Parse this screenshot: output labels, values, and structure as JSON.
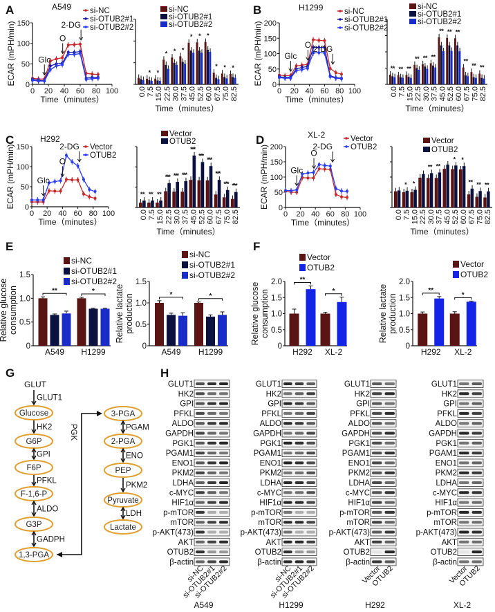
{
  "panels": {
    "A": "A",
    "B": "B",
    "C": "C",
    "D": "D",
    "E": "E",
    "F": "F",
    "G": "G",
    "H": "H"
  },
  "colors": {
    "ctrl_line": "#c62828",
    "kd1_line": "#1a1aa0",
    "kd2_line": "#2a3cf0",
    "ctrl_bar": "#5a1414",
    "kd1_bar": "#0c1240",
    "kd2_bar": "#1a2cc8",
    "otub2_bar_dark": "#0c1240",
    "otub2_bar_blue": "#1424e6",
    "ellipse": "#e0a030"
  },
  "chart_data": [
    {
      "id": "A_line",
      "type": "line",
      "title": "A549",
      "xlabel": "Time（minutes）",
      "ylabel": "ECAR (mPH/min)",
      "xlim": [
        0,
        100
      ],
      "ylim": [
        0,
        150
      ],
      "xticks": [
        0,
        20,
        40,
        60,
        80,
        100
      ],
      "yticks": [
        0,
        50,
        100,
        150
      ],
      "x": [
        0,
        7.5,
        15,
        22.5,
        30,
        37.5,
        45,
        52.5,
        60,
        67.5,
        75,
        82.5
      ],
      "series": [
        {
          "name": "si-NC",
          "values": [
            15,
            13,
            13,
            57,
            62,
            65,
            96,
            97,
            98,
            27,
            25,
            24
          ]
        },
        {
          "name": "si-OTUB2#1",
          "values": [
            12,
            10,
            9,
            45,
            50,
            52,
            78,
            78,
            80,
            15,
            17,
            17
          ]
        },
        {
          "name": "si-OTUB2#2",
          "values": [
            10,
            8,
            8,
            36,
            45,
            48,
            73,
            73,
            75,
            12,
            14,
            15
          ]
        }
      ],
      "annotations": [
        {
          "label": "Glc",
          "x": 15
        },
        {
          "label": "O",
          "x": 38
        },
        {
          "label": "2-DG",
          "x": 61
        }
      ]
    },
    {
      "id": "A_bar",
      "type": "bar",
      "xlabel": "Time（minutes）",
      "ylim": [
        0,
        150
      ],
      "yticks": [
        0,
        50,
        100,
        150
      ],
      "categories": [
        "0.0",
        "7.5",
        "15.0",
        "22.5",
        "30.0",
        "37.5",
        "45.0",
        "52.5",
        "60.0",
        "67.5",
        "75.0",
        "82.5"
      ],
      "series": [
        {
          "name": "si-NC",
          "values": [
            15,
            13,
            13,
            57,
            62,
            65,
            96,
            97,
            98,
            27,
            25,
            24
          ]
        },
        {
          "name": "si-OTUB2#1",
          "values": [
            12,
            10,
            9,
            45,
            50,
            52,
            78,
            78,
            80,
            15,
            17,
            17
          ]
        },
        {
          "name": "si-OTUB2#2",
          "values": [
            10,
            8,
            8,
            36,
            45,
            48,
            73,
            73,
            75,
            12,
            14,
            15
          ]
        }
      ],
      "significance": [
        "",
        "*",
        "*",
        "*",
        "*",
        "*",
        "*",
        "*",
        "*",
        "*",
        "*",
        "*"
      ]
    },
    {
      "id": "B_line",
      "type": "line",
      "title": "H1299",
      "xlabel": "Time（minutes）",
      "ylabel": "ECAR (mPH/min)",
      "xlim": [
        0,
        100
      ],
      "ylim": [
        0,
        200
      ],
      "xticks": [
        0,
        20,
        40,
        60,
        80,
        100
      ],
      "yticks": [
        0,
        50,
        100,
        150,
        200
      ],
      "x": [
        0,
        7.5,
        15,
        22.5,
        30,
        37.5,
        45,
        52.5,
        60,
        67.5,
        75,
        82.5
      ],
      "series": [
        {
          "name": "si-NC",
          "values": [
            30,
            28,
            29,
            60,
            62,
            65,
            145,
            143,
            142,
            52,
            38,
            33
          ]
        },
        {
          "name": "si-OTUB2#1",
          "values": [
            25,
            22,
            23,
            50,
            55,
            58,
            120,
            120,
            120,
            28,
            22,
            20
          ]
        },
        {
          "name": "si-OTUB2#2",
          "values": [
            22,
            20,
            20,
            45,
            48,
            52,
            102,
            103,
            102,
            25,
            20,
            18
          ]
        }
      ],
      "annotations": [
        {
          "label": "Glc",
          "x": 15
        },
        {
          "label": "O",
          "x": 38
        },
        {
          "label": "2-DG",
          "x": 71
        }
      ]
    },
    {
      "id": "B_bar",
      "type": "bar",
      "xlabel": "Time（minutes）",
      "ylim": [
        0,
        200
      ],
      "yticks": [
        0,
        50,
        100,
        150,
        200
      ],
      "categories": [
        "0.0",
        "7.5",
        "15.0",
        "22.5",
        "30.0",
        "37.5",
        "45.0",
        "52.5",
        "60.0",
        "67.5",
        "75.0",
        "82.5"
      ],
      "series": [
        {
          "name": "si-NC",
          "values": [
            30,
            28,
            29,
            60,
            62,
            65,
            145,
            143,
            142,
            52,
            38,
            33
          ]
        },
        {
          "name": "si-OTUB2#1",
          "values": [
            25,
            22,
            23,
            50,
            55,
            58,
            120,
            120,
            120,
            28,
            22,
            20
          ]
        },
        {
          "name": "si-OTUB2#2",
          "values": [
            22,
            20,
            20,
            45,
            48,
            52,
            102,
            103,
            102,
            25,
            20,
            18
          ]
        }
      ],
      "significance": [
        "**",
        "**",
        "**",
        "**",
        "**",
        "**",
        "**",
        "**",
        "**",
        "**",
        "**",
        "**"
      ]
    },
    {
      "id": "C_line",
      "type": "line",
      "title": "H292",
      "xlabel": "Time（minutes）",
      "ylabel": "ECAR (mPH/min)",
      "xlim": [
        0,
        100
      ],
      "ylim": [
        0,
        150
      ],
      "xticks": [
        0,
        20,
        40,
        60,
        80,
        100
      ],
      "yticks": [
        0,
        50,
        100,
        150
      ],
      "x": [
        0,
        7.5,
        15,
        22.5,
        30,
        37.5,
        45,
        52.5,
        60,
        67.5,
        75,
        82.5
      ],
      "series": [
        {
          "name": "Vector",
          "values": [
            12,
            12,
            12,
            40,
            39,
            39,
            68,
            67,
            67,
            32,
            25,
            21
          ]
        },
        {
          "name": "OTUB2",
          "values": [
            17,
            17,
            17,
            60,
            63,
            65,
            128,
            112,
            102,
            68,
            43,
            38
          ]
        }
      ],
      "annotations": [
        {
          "label": "Glc",
          "x": 15
        },
        {
          "label": "O",
          "x": 40
        },
        {
          "label": "2-DG",
          "x": 62
        }
      ]
    },
    {
      "id": "C_bar",
      "type": "bar",
      "xlabel": "Time（minutes）",
      "ylim": [
        0,
        150
      ],
      "yticks": [
        0,
        50,
        100,
        150
      ],
      "categories": [
        "0.0",
        "7.5",
        "15.0",
        "22.5",
        "30.0",
        "37.5",
        "45.0",
        "52.5",
        "60.0",
        "67.5",
        "75.0",
        "82.5"
      ],
      "series": [
        {
          "name": "Vector",
          "values": [
            12,
            12,
            12,
            40,
            39,
            39,
            68,
            67,
            67,
            32,
            25,
            21
          ]
        },
        {
          "name": "OTUB2",
          "values": [
            17,
            17,
            17,
            60,
            63,
            65,
            128,
            112,
            102,
            68,
            43,
            38
          ]
        }
      ],
      "significance": [
        "**",
        "**",
        "**",
        "***",
        "***",
        "***",
        "***",
        "***",
        "***",
        "***",
        "***",
        "***"
      ]
    },
    {
      "id": "D_line",
      "type": "line",
      "title": "XL-2",
      "xlabel": "Time（minutes）",
      "ylabel": "ECAR (mPH/min)",
      "xlim": [
        0,
        100
      ],
      "ylim": [
        0,
        200
      ],
      "xticks": [
        0,
        20,
        40,
        60,
        80,
        100
      ],
      "yticks": [
        0,
        50,
        100,
        150,
        200
      ],
      "x": [
        0,
        7.5,
        15,
        22.5,
        30,
        37.5,
        45,
        52.5,
        60,
        67.5,
        75,
        82.5
      ],
      "series": [
        {
          "name": "Vector",
          "values": [
            53,
            50,
            50,
            98,
            97,
            97,
            127,
            126,
            125,
            43,
            35,
            33
          ]
        },
        {
          "name": "OTUB2",
          "values": [
            56,
            55,
            58,
            110,
            113,
            115,
            141,
            138,
            136,
            62,
            54,
            53
          ]
        }
      ],
      "annotations": [
        {
          "label": "Glc",
          "x": 15
        },
        {
          "label": "O",
          "x": 38
        },
        {
          "label": "2-DG",
          "x": 63
        }
      ]
    },
    {
      "id": "D_bar",
      "type": "bar",
      "xlabel": "Time（minutes）",
      "ylim": [
        0,
        200
      ],
      "yticks": [
        0,
        50,
        100,
        150,
        200
      ],
      "categories": [
        "0.0",
        "7.5",
        "15.0",
        "22.5",
        "30.0",
        "37.5",
        "45.0",
        "52.5",
        "60.0",
        "67.5",
        "75.0",
        "82.5"
      ],
      "series": [
        {
          "name": "Vector",
          "values": [
            53,
            50,
            50,
            98,
            97,
            97,
            127,
            126,
            125,
            43,
            35,
            33
          ]
        },
        {
          "name": "OTUB2",
          "values": [
            56,
            55,
            58,
            110,
            113,
            115,
            141,
            138,
            136,
            62,
            54,
            53
          ]
        }
      ],
      "significance": [
        "",
        "*",
        "*",
        "",
        "**",
        "**",
        "",
        "*",
        "*",
        "**",
        "**",
        "**"
      ]
    },
    {
      "id": "E_glucose",
      "type": "bar",
      "ylabel": [
        "Relative glucose",
        "consumption"
      ],
      "ylim": [
        0,
        1.5
      ],
      "yticks": [
        0,
        0.5,
        1.0,
        1.5
      ],
      "ytick_labels": [
        "0",
        "0.5",
        "1.0",
        "1.5"
      ],
      "categories": [
        "A549",
        "H1299"
      ],
      "series": [
        {
          "name": "si-NC",
          "values": [
            1.0,
            1.0
          ],
          "errors": [
            0.03,
            0.02
          ]
        },
        {
          "name": "si-OTUB2#1",
          "values": [
            0.65,
            0.78
          ],
          "errors": [
            0.02,
            0.01
          ]
        },
        {
          "name": "si-OTUB2#2",
          "values": [
            0.68,
            0.78
          ],
          "errors": [
            0.05,
            0.01
          ]
        }
      ],
      "significance": [
        "**",
        "*"
      ]
    },
    {
      "id": "E_lactate",
      "type": "bar",
      "ylabel": [
        "Relative lactate",
        "production"
      ],
      "ylim": [
        0,
        1.5
      ],
      "yticks": [
        0,
        0.5,
        1.0,
        1.5
      ],
      "ytick_labels": [
        "0",
        "0.5",
        "1.0",
        "1.5"
      ],
      "categories": [
        "A549",
        "H1299"
      ],
      "series": [
        {
          "name": "si-NC",
          "values": [
            1.0,
            1.0
          ],
          "errors": [
            0.05,
            0.02
          ]
        },
        {
          "name": "si-OTUB2#1",
          "values": [
            0.72,
            0.68
          ],
          "errors": [
            0.04,
            0.04
          ]
        },
        {
          "name": "si-OTUB2#2",
          "values": [
            0.7,
            0.72
          ],
          "errors": [
            0.07,
            0.07
          ]
        }
      ],
      "significance": [
        "*",
        "*"
      ]
    },
    {
      "id": "F_glucose",
      "type": "bar",
      "ylabel": [
        "Relative glucose",
        "consumption"
      ],
      "ylim": [
        0,
        2.0
      ],
      "yticks": [
        0,
        0.5,
        1.0,
        1.5,
        2.0
      ],
      "ytick_labels": [
        "0",
        "0.5",
        "1.0",
        "1.5",
        "2.0"
      ],
      "categories": [
        "H292",
        "XL-2"
      ],
      "series": [
        {
          "name": "Vector",
          "values": [
            1.0,
            1.0
          ],
          "errors": [
            0.14,
            0.04
          ]
        },
        {
          "name": "OTUB2",
          "values": [
            1.76,
            1.36
          ],
          "errors": [
            0.1,
            0.15
          ]
        }
      ],
      "significance": [
        "**",
        "*"
      ]
    },
    {
      "id": "F_lactate",
      "type": "bar",
      "ylabel": [
        "Relative lactate",
        "production"
      ],
      "ylim": [
        0,
        2.0
      ],
      "yticks": [
        0,
        0.5,
        1.0,
        1.5,
        2.0
      ],
      "ytick_labels": [
        "0",
        "0.5",
        "1.0",
        "1.5",
        "2.0"
      ],
      "categories": [
        "H292",
        "XL-2"
      ],
      "series": [
        {
          "name": "Vector",
          "values": [
            1.0,
            1.0
          ],
          "errors": [
            0.05,
            0.06
          ]
        },
        {
          "name": "OTUB2",
          "values": [
            1.47,
            1.37
          ],
          "errors": [
            0.06,
            0.02
          ]
        }
      ],
      "significance": [
        "**",
        "*"
      ]
    }
  ],
  "pathway": {
    "top": "GLUT",
    "left": [
      {
        "metabolite": "Glucose",
        "enzyme": "GLUT1",
        "reversible": false
      },
      {
        "metabolite": "G6P",
        "enzyme": "HK2",
        "reversible": false
      },
      {
        "metabolite": "F6P",
        "enzyme": "GPI",
        "reversible": true
      },
      {
        "metabolite": "F-1,6-P",
        "enzyme": "PFKL",
        "reversible": false
      },
      {
        "metabolite": "G3P",
        "enzyme": "ALDO",
        "reversible": true
      },
      {
        "metabolite": "1,3-PGA",
        "enzyme": "GADPH",
        "reversible": true
      }
    ],
    "right": [
      {
        "metabolite": "3-PGA",
        "enzyme": "",
        "reversible": false
      },
      {
        "metabolite": "2-PGA",
        "enzyme": "PGAM",
        "reversible": true
      },
      {
        "metabolite": "PEP",
        "enzyme": "ENO",
        "reversible": true
      },
      {
        "metabolite": "Pyruvate",
        "enzyme": "PKM2",
        "reversible": false
      },
      {
        "metabolite": "Lactate",
        "enzyme": "LDH",
        "reversible": true
      }
    ],
    "link_enzyme": "PGK"
  },
  "blots": {
    "proteins": [
      "GLUT1",
      "HK2",
      "GPI",
      "PFKL",
      "ALDO",
      "GAPDH",
      "PGK1",
      "PGAM1",
      "ENO1",
      "PKM2",
      "LDHA",
      "c-MYC",
      "HIF1α",
      "p-mTOR",
      "mTOR",
      "p-AKT(473)",
      "AKT",
      "OTUB2",
      "β-actin"
    ],
    "groups": [
      {
        "cell": "A549",
        "lanes": [
          "si-NC",
          "si-OTUB2#1",
          "si-OTUB2#2"
        ]
      },
      {
        "cell": "H1299",
        "lanes": [
          "si-NC",
          "si-OTUB2#1",
          "si-OTUB2#2"
        ]
      },
      {
        "cell": "H292",
        "lanes": [
          "Vector",
          "OTUB2"
        ]
      },
      {
        "cell": "XL-2",
        "lanes": [
          "Vector",
          "OTUB2"
        ]
      }
    ]
  }
}
